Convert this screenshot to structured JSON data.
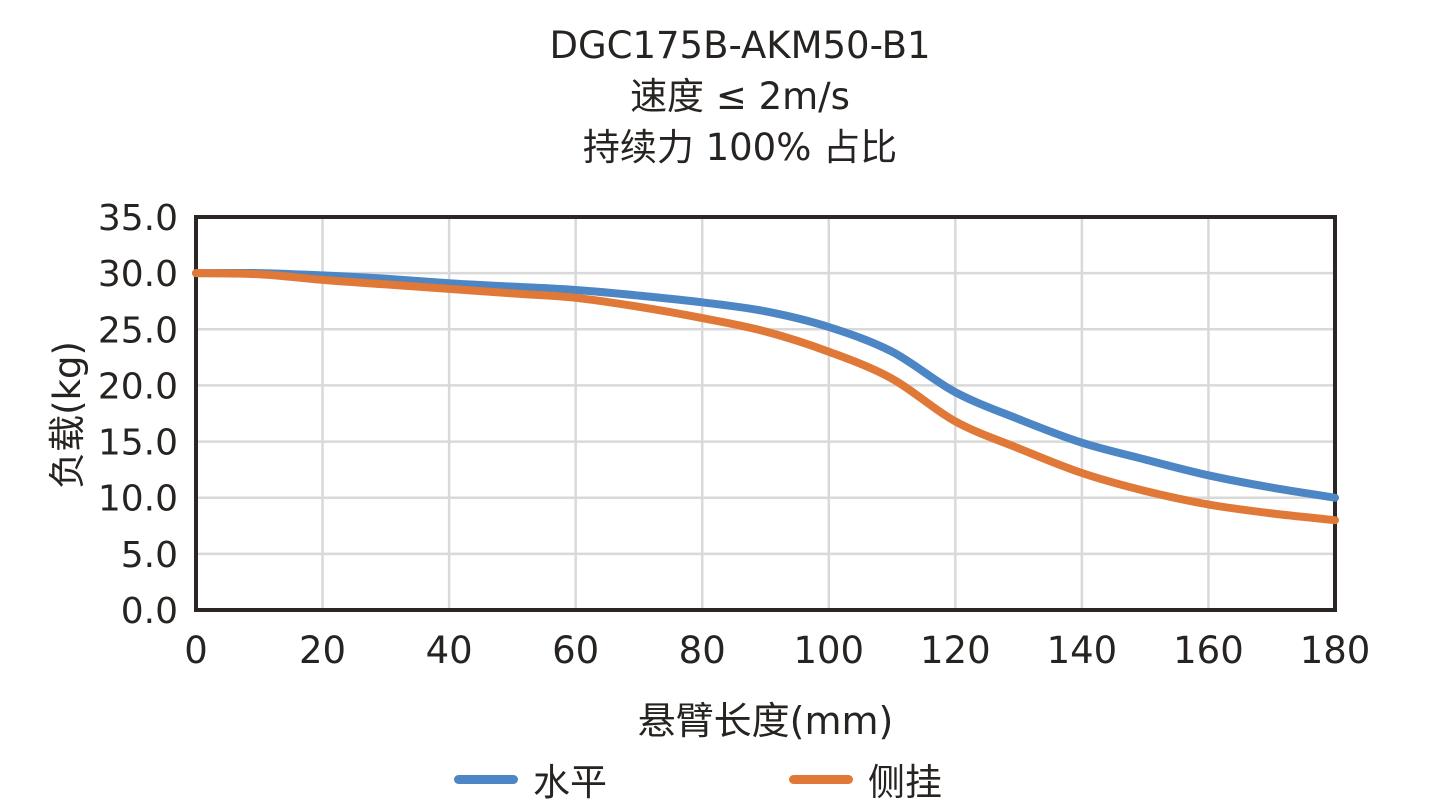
{
  "chart": {
    "title": "DGC175B-AKM50-B1",
    "subtitle1": "速度 ≤ 2m/s",
    "subtitle2": "持续力 100% 占比"
  },
  "chart_data": {
    "type": "line",
    "title": "DGC175B-AKM50-B1",
    "subtitle_lines": [
      "速度 ≤ 2m/s",
      "持续力 100% 占比"
    ],
    "xlabel": "悬臂长度(mm)",
    "ylabel": "负载(kg)",
    "xlim": [
      0,
      180
    ],
    "ylim": [
      0,
      35
    ],
    "x_ticks": [
      0,
      20,
      40,
      60,
      80,
      100,
      120,
      140,
      160,
      180
    ],
    "x_tick_labels": [
      "0",
      "20",
      "40",
      "60",
      "80",
      "100",
      "120",
      "140",
      "160",
      "180"
    ],
    "y_ticks": [
      0,
      5,
      10,
      15,
      20,
      25,
      30,
      35
    ],
    "y_tick_labels": [
      "0.0",
      "5.0",
      "10.0",
      "15.0",
      "20.0",
      "25.0",
      "30.0",
      "35.0"
    ],
    "grid": true,
    "legend_position": "bottom",
    "x": [
      0,
      10,
      20,
      30,
      40,
      50,
      60,
      70,
      80,
      90,
      100,
      110,
      120,
      130,
      140,
      150,
      160,
      170,
      180
    ],
    "series": [
      {
        "name": "水平",
        "color": "#4d86c4",
        "values": [
          30.0,
          30.0,
          29.8,
          29.5,
          29.1,
          28.8,
          28.5,
          28.0,
          27.4,
          26.6,
          25.2,
          23.0,
          19.4,
          17.0,
          14.9,
          13.4,
          12.0,
          10.9,
          10.0
        ]
      },
      {
        "name": "侧挂",
        "color": "#e07937",
        "values": [
          30.0,
          29.9,
          29.4,
          29.0,
          28.6,
          28.2,
          27.8,
          27.0,
          26.0,
          24.8,
          23.0,
          20.6,
          16.8,
          14.4,
          12.2,
          10.6,
          9.4,
          8.6,
          8.0
        ]
      }
    ],
    "colors": {
      "grid": "#d9d9d9",
      "frame": "#2b2523",
      "text": "#262321",
      "background": "#ffffff"
    }
  }
}
